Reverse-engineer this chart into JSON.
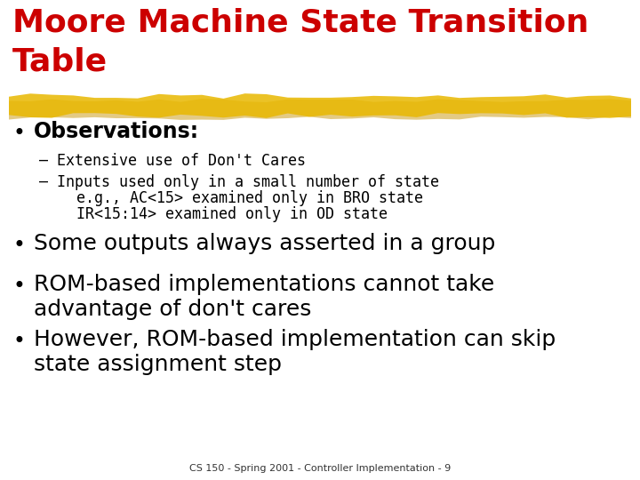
{
  "title_line1": "Moore Machine State Transition",
  "title_line2": "Table",
  "title_color": "#cc0000",
  "background_color": "#ffffff",
  "highlight_color": "#e8b800",
  "bullet1_header": "Observations:",
  "bullet1_sub1": "– Extensive use of Don't Cares",
  "bullet1_sub2_line1": "– Inputs used only in a small number of state",
  "bullet1_sub2_line2": "   e.g., AC<15> examined only in BRO state",
  "bullet1_sub2_line3": "   IR<15:14> examined only in OD state",
  "bullet2": "Some outputs always asserted in a group",
  "bullet3_line1": "ROM-based implementations cannot take",
  "bullet3_line2": "advantage of don't cares",
  "bullet4_line1": "However, ROM-based implementation can skip",
  "bullet4_line2": "state assignment step",
  "footer": "CS 150 - Spring 2001 - Controller Implementation - 9"
}
